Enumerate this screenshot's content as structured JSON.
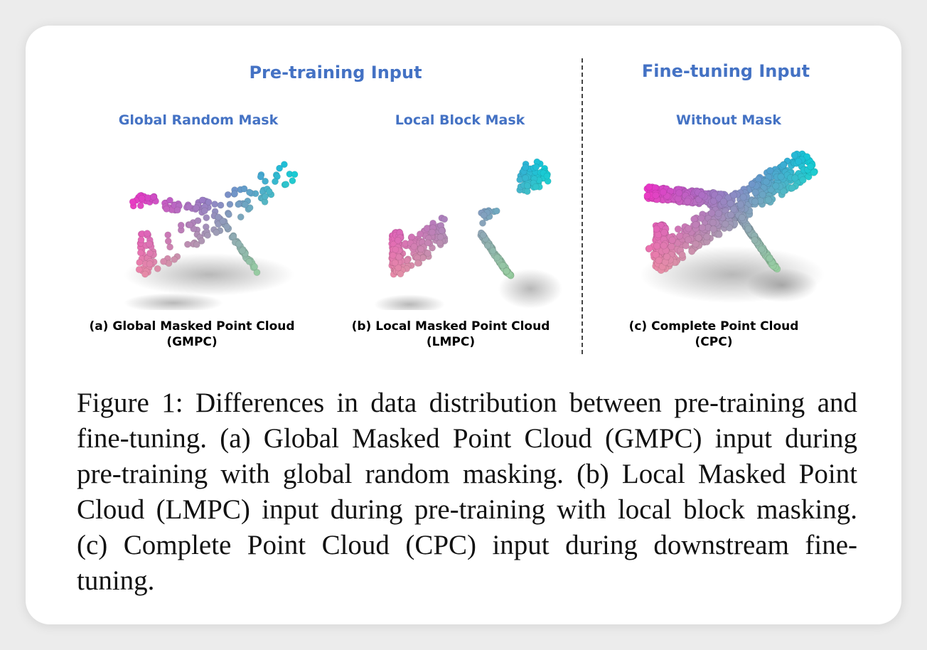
{
  "pretraining_title": "Pre-training Input",
  "finetuning_title": "Fine-tuning Input",
  "panels": [
    {
      "mask_label": "Global Random Mask",
      "caption_line1": "(a) Global Masked Point Cloud",
      "caption_line2": "(GMPC)"
    },
    {
      "mask_label": "Local Block Mask",
      "caption_line1": "(b) Local Masked Point Cloud",
      "caption_line2": "(LMPC)"
    },
    {
      "mask_label": "Without Mask",
      "caption_line1": "(c) Complete Point Cloud",
      "caption_line2": "(CPC)"
    }
  ],
  "figure_caption": "Figure 1: Differences in data distribution between pre-training and fine-tuning. (a) Global Masked Point Cloud (GMPC) input during pre-training with global random masking. (b) Local Masked Point Cloud (LMPC) input during pre-training with local block masking. (c) Complete Point Cloud (CPC) input during downstream fine-tuning.",
  "colors": {
    "title_blue": "#4472c4",
    "magenta": "#e81ad0",
    "cyan": "#13c9d6",
    "green": "#86e39a",
    "pink": "#f08aa6"
  }
}
